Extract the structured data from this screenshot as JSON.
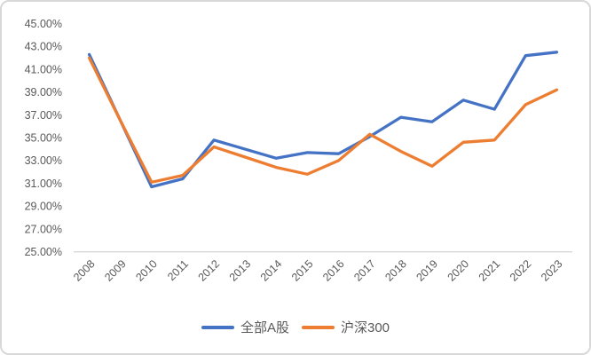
{
  "chart_data": {
    "type": "line",
    "title": "",
    "categories": [
      "2008",
      "2009",
      "2010",
      "2011",
      "2012",
      "2013",
      "2014",
      "2015",
      "2016",
      "2017",
      "2018",
      "2019",
      "2020",
      "2021",
      "2022",
      "2023"
    ],
    "series": [
      {
        "name": "全部A股",
        "color": "#4472C4",
        "values": [
          42.3,
          36.5,
          30.7,
          31.4,
          34.8,
          34.0,
          33.2,
          33.7,
          33.6,
          35.1,
          36.8,
          36.4,
          38.3,
          37.5,
          42.2,
          42.5
        ]
      },
      {
        "name": "沪深300",
        "color": "#ED7D31",
        "values": [
          42.0,
          36.5,
          31.1,
          31.7,
          34.2,
          33.3,
          32.4,
          31.8,
          33.0,
          35.3,
          33.8,
          32.5,
          34.6,
          34.8,
          37.9,
          39.2
        ]
      }
    ],
    "value_unit": "percent",
    "y_axis": {
      "min": 25,
      "max": 45,
      "step": 2,
      "tick_labels_top_to_bottom": [
        "45.00%",
        "43.00%",
        "41.00%",
        "39.00%",
        "37.00%",
        "35.00%",
        "33.00%",
        "31.00%",
        "29.00%",
        "27.00%",
        "25.00%"
      ]
    },
    "x_axis": {
      "label_rotation_deg": -45
    },
    "legend": {
      "position": "bottom",
      "entries": [
        "全部A股",
        "沪深300"
      ]
    },
    "grid": false
  },
  "styles": {
    "series_colors": [
      "#4472C4",
      "#ED7D31"
    ],
    "axis_text_color": "#595959",
    "axis_line_color": "#D9D9D9",
    "frame_border_color": "#D8D8D8",
    "background": "#FFFFFF"
  }
}
